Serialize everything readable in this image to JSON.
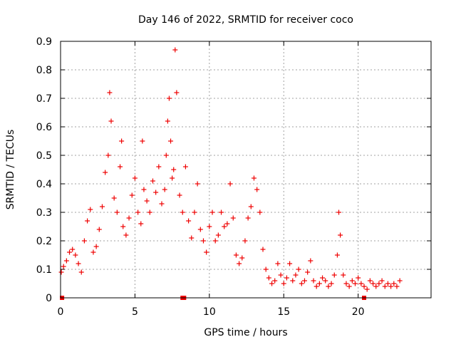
{
  "chart_data": {
    "type": "scatter",
    "title": "Day 146 of 2022, SRMTID for receiver coco",
    "xlabel": "GPS time / hours",
    "ylabel": "SRMTID / TECUs",
    "xlim": [
      0,
      24.9
    ],
    "ylim": [
      0,
      0.9
    ],
    "xticks": [
      0,
      5,
      10,
      15,
      20
    ],
    "xtick_labels": [
      "0",
      "5",
      "10",
      "15",
      "20"
    ],
    "yticks": [
      0,
      0.1,
      0.2,
      0.3,
      0.4,
      0.5,
      0.6,
      0.7,
      0.8,
      0.9
    ],
    "ytick_labels": [
      "0",
      "0.1",
      "0.2",
      "0.3",
      "0.4",
      "0.5",
      "0.6",
      "0.7",
      "0.8",
      "0.9"
    ],
    "grid": true,
    "marker": "+",
    "marker_color": "#ee0000",
    "series": [
      {
        "name": "SRMTID",
        "x": [
          0.05,
          0.2,
          0.4,
          0.6,
          0.8,
          1.0,
          1.2,
          1.4,
          1.6,
          1.8,
          2.0,
          2.2,
          2.4,
          2.6,
          2.8,
          3.0,
          3.2,
          3.3,
          3.4,
          3.6,
          3.8,
          4.0,
          4.1,
          4.2,
          4.4,
          4.6,
          4.8,
          5.0,
          5.2,
          5.4,
          5.5,
          5.6,
          5.8,
          6.0,
          6.2,
          6.4,
          6.6,
          6.8,
          7.0,
          7.1,
          7.2,
          7.3,
          7.4,
          7.5,
          7.6,
          7.7,
          7.8,
          8.0,
          8.2,
          8.4,
          8.6,
          8.8,
          9.0,
          9.2,
          9.4,
          9.6,
          9.8,
          10.0,
          10.2,
          10.4,
          10.6,
          10.8,
          11.0,
          11.2,
          11.4,
          11.6,
          11.8,
          12.0,
          12.2,
          12.4,
          12.6,
          12.8,
          13.0,
          13.2,
          13.4,
          13.6,
          13.8,
          14.0,
          14.2,
          14.4,
          14.6,
          14.8,
          15.0,
          15.2,
          15.4,
          15.6,
          15.8,
          16.0,
          16.2,
          16.4,
          16.6,
          16.8,
          17.0,
          17.2,
          17.4,
          17.6,
          17.8,
          18.0,
          18.2,
          18.4,
          18.6,
          18.7,
          18.8,
          19.0,
          19.2,
          19.4,
          19.6,
          19.8,
          20.0,
          20.2,
          20.4,
          20.6,
          20.8,
          21.0,
          21.2,
          21.4,
          21.6,
          21.8,
          22.0,
          22.2,
          22.4,
          22.6,
          22.8
        ],
        "y": [
          0.09,
          0.11,
          0.13,
          0.16,
          0.17,
          0.15,
          0.12,
          0.09,
          0.2,
          0.27,
          0.31,
          0.16,
          0.18,
          0.24,
          0.32,
          0.44,
          0.5,
          0.72,
          0.62,
          0.35,
          0.3,
          0.46,
          0.55,
          0.25,
          0.22,
          0.28,
          0.36,
          0.42,
          0.3,
          0.26,
          0.55,
          0.38,
          0.34,
          0.3,
          0.41,
          0.37,
          0.46,
          0.33,
          0.38,
          0.5,
          0.62,
          0.7,
          0.55,
          0.42,
          0.45,
          0.87,
          0.72,
          0.36,
          0.3,
          0.46,
          0.27,
          0.21,
          0.3,
          0.4,
          0.24,
          0.2,
          0.16,
          0.25,
          0.3,
          0.2,
          0.22,
          0.3,
          0.25,
          0.26,
          0.4,
          0.28,
          0.15,
          0.12,
          0.14,
          0.2,
          0.28,
          0.32,
          0.42,
          0.38,
          0.3,
          0.17,
          0.1,
          0.07,
          0.05,
          0.06,
          0.12,
          0.08,
          0.05,
          0.07,
          0.12,
          0.06,
          0.08,
          0.1,
          0.05,
          0.06,
          0.09,
          0.13,
          0.06,
          0.04,
          0.05,
          0.07,
          0.06,
          0.04,
          0.05,
          0.08,
          0.15,
          0.3,
          0.22,
          0.08,
          0.05,
          0.04,
          0.06,
          0.05,
          0.07,
          0.05,
          0.04,
          0.03,
          0.06,
          0.05,
          0.04,
          0.05,
          0.06,
          0.04,
          0.05,
          0.04,
          0.05,
          0.04,
          0.06
        ]
      }
    ],
    "zero_markers": {
      "name": "zero-level points",
      "x": [
        0.1,
        8.2,
        8.3,
        20.4
      ],
      "y": [
        0,
        0,
        0,
        0
      ]
    }
  }
}
